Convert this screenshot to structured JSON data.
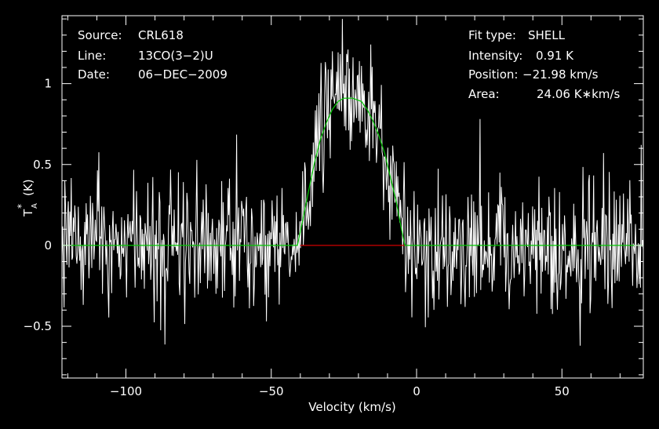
{
  "chart_data": {
    "type": "line",
    "title": "",
    "xlabel": "Velocity (km/s)",
    "ylabel": "T_A^* (K)",
    "ylabel_main": "T",
    "ylabel_sub": "A",
    "ylabel_sup": "*",
    "ylabel_unit": "(K)",
    "xlim": [
      -122,
      78
    ],
    "ylim": [
      -0.82,
      1.42
    ],
    "xticks": [
      -100,
      -50,
      0,
      50
    ],
    "xtick_labels": [
      "−100",
      "−50",
      "0",
      "50"
    ],
    "yticks": [
      -0.5,
      0,
      0.5,
      1
    ],
    "ytick_labels": [
      "−0.5",
      "0",
      "0.5",
      "1"
    ],
    "grid": false,
    "annotations_left": [
      {
        "label": "Source:",
        "value": "CRL618"
      },
      {
        "label": "Line:",
        "value": "13CO(3−2)U"
      },
      {
        "label": "Date:",
        "value": "06−DEC−2009"
      }
    ],
    "annotations_right": [
      {
        "label": "Fit type:",
        "value": "SHELL"
      },
      {
        "label": "Intensity:",
        "value": "0.91 K"
      },
      {
        "label": "Position:",
        "value": "−21.98 km/s"
      },
      {
        "label": "Area:",
        "value": "24.06 K∗km/s"
      }
    ],
    "fit": {
      "type": "SHELL",
      "intensity": 0.91,
      "position": -21.98,
      "area": 24.06,
      "x": [
        -122,
        -41,
        -39,
        -37,
        -35,
        -33,
        -31,
        -29,
        -27,
        -25,
        -22,
        -19,
        -17,
        -15,
        -13,
        -11,
        -9,
        -7,
        -5,
        -4,
        78
      ],
      "y": [
        0,
        0,
        0.17,
        0.35,
        0.52,
        0.66,
        0.76,
        0.84,
        0.89,
        0.91,
        0.91,
        0.89,
        0.84,
        0.77,
        0.68,
        0.57,
        0.42,
        0.27,
        0.08,
        0,
        0
      ]
    },
    "window": {
      "x": [
        -40,
        -4
      ],
      "y": 0
    },
    "spectrum": {
      "x_start": -122,
      "x_end": 78,
      "n_points": 820,
      "noise_rms": 0.2,
      "baseline": 0
    },
    "colors": {
      "background": "#000000",
      "axes": "#ffffff",
      "spectrum": "#ffffff",
      "fit": "#00c800",
      "window": "#d00000",
      "text": "#ffffff"
    }
  }
}
